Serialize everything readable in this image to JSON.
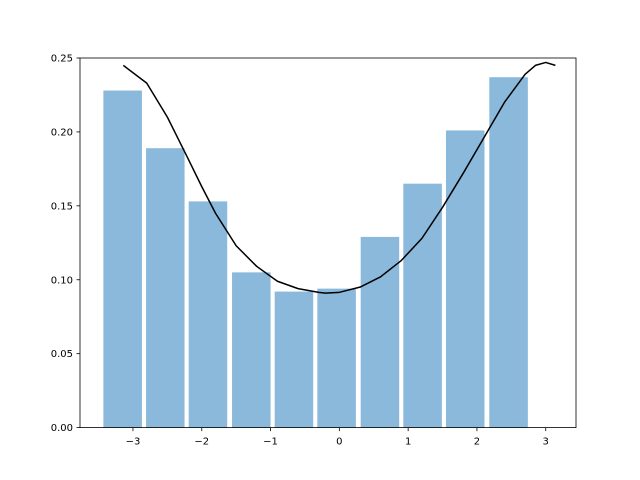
{
  "chart_data": {
    "type": "bar",
    "title": "",
    "xlabel": "",
    "ylabel": "",
    "xlim": [
      -3.77,
      3.44
    ],
    "ylim": [
      0.0,
      0.25
    ],
    "x_ticks": [
      -3,
      -2,
      -1,
      0,
      1,
      2,
      3
    ],
    "x_tick_labels": [
      "−3",
      "−2",
      "−1",
      "0",
      "1",
      "2",
      "3"
    ],
    "y_ticks": [
      0.0,
      0.05,
      0.1,
      0.15,
      0.2,
      0.25
    ],
    "y_tick_labels": [
      "0.00",
      "0.05",
      "0.10",
      "0.15",
      "0.20",
      "0.25"
    ],
    "grid": false,
    "colors": {
      "bars": "#8ab9db",
      "curve": "#000000"
    },
    "bars": {
      "x_left": [
        -3.43,
        -2.81,
        -2.19,
        -1.56,
        -0.94,
        -0.32,
        0.31,
        0.93,
        1.55,
        2.18
      ],
      "width": 0.56,
      "values": [
        0.228,
        0.189,
        0.153,
        0.105,
        0.092,
        0.094,
        0.129,
        0.165,
        0.201,
        0.237
      ]
    },
    "curve": {
      "x": [
        -3.14,
        -2.8,
        -2.5,
        -2.2,
        -2.0,
        -1.8,
        -1.5,
        -1.2,
        -0.9,
        -0.6,
        -0.3,
        -0.2,
        0.0,
        0.3,
        0.6,
        0.9,
        1.2,
        1.5,
        1.8,
        2.1,
        2.4,
        2.7,
        2.85,
        3.0,
        3.14
      ],
      "y": [
        0.245,
        0.233,
        0.21,
        0.182,
        0.163,
        0.145,
        0.123,
        0.109,
        0.099,
        0.094,
        0.0915,
        0.091,
        0.0915,
        0.095,
        0.102,
        0.113,
        0.128,
        0.149,
        0.172,
        0.196,
        0.22,
        0.239,
        0.245,
        0.247,
        0.245
      ]
    }
  }
}
